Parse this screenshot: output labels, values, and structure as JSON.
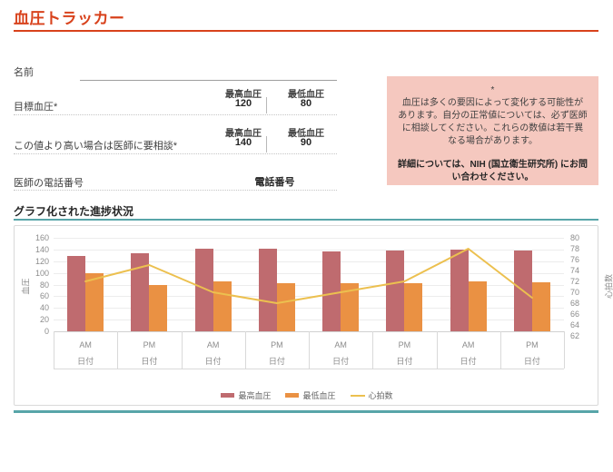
{
  "page": {
    "title": "血圧トラッカー"
  },
  "form": {
    "name_label": "名前",
    "target": {
      "label": "目標血圧*",
      "systolic_header": "最高血圧",
      "diastolic_header": "最低血圧",
      "systolic": "120",
      "diastolic": "80"
    },
    "consult": {
      "label": "この値より高い場合は医師に要相談*",
      "systolic_header": "最高血圧",
      "diastolic_header": "最低血圧",
      "systolic": "140",
      "diastolic": "90"
    },
    "doctor_phone": {
      "label": "医師の電話番号",
      "value": "電話番号"
    }
  },
  "note": {
    "asterisk": "*",
    "body": "血圧は多くの要因によって変化する可能性があります。自分の正常値については、必ず医師に相談してください。これらの数値は若干異なる場合があります。",
    "contact": "詳細については、NIH (国立衛生研究所) にお問い合わせください。",
    "background": "#f5c8bf"
  },
  "chart_section": {
    "title": "グラフ化された進捗状況"
  },
  "chart_data": {
    "type": "bar",
    "subtype": "grouped bars with secondary-axis line",
    "categories": [
      "AM",
      "PM",
      "AM",
      "PM",
      "AM",
      "PM",
      "AM",
      "PM"
    ],
    "category_sublabel": "日付",
    "series": [
      {
        "name": "最高血圧",
        "type": "bar",
        "axis": "left",
        "color": "#bf6b6f",
        "values": [
          129,
          133,
          142,
          141,
          137,
          138,
          140,
          138
        ]
      },
      {
        "name": "最低血圧",
        "type": "bar",
        "axis": "left",
        "color": "#ea9143",
        "values": [
          99,
          80,
          85,
          82,
          83,
          82,
          85,
          84
        ]
      },
      {
        "name": "心拍数",
        "type": "line",
        "axis": "right",
        "color": "#ecc04f",
        "values": [
          72,
          75,
          70,
          68,
          70,
          72,
          78,
          69
        ]
      }
    ],
    "left_axis": {
      "label": "血圧",
      "min": 0,
      "max": 160,
      "step": 20
    },
    "right_axis": {
      "label": "心拍数",
      "min": 62,
      "max": 80,
      "step": 2
    },
    "legend_position": "bottom",
    "grid": true
  },
  "colors": {
    "accent_orange": "#d8421c",
    "accent_teal": "#58a5a9",
    "bar_systolic": "#bf6b6f",
    "bar_diastolic": "#ea9143",
    "line_heart_rate": "#ecc04f"
  }
}
